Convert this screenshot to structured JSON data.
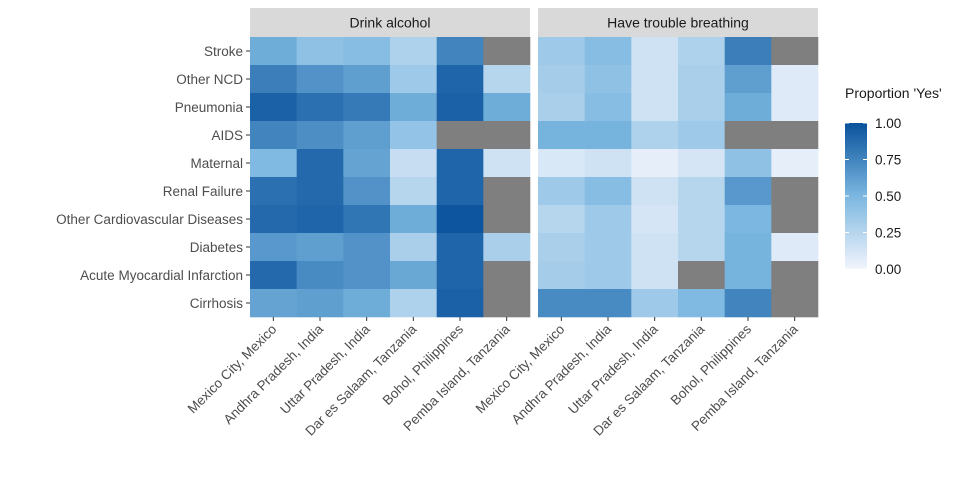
{
  "chart_data": {
    "type": "heatmap",
    "legend": {
      "title": "Proportion 'Yes'",
      "ticks": [
        "1.00",
        "0.75",
        "0.50",
        "0.25",
        "0.00"
      ],
      "tick_values": [
        1.0,
        0.75,
        0.5,
        0.25,
        0.0
      ],
      "range": [
        0,
        1
      ],
      "low_color": "#f1f4fc",
      "high_color": "#08519c"
    },
    "na_color": "#7f7f7f",
    "rows": [
      "Stroke",
      "Other NCD",
      "Pneumonia",
      "AIDS",
      "Maternal",
      "Renal Failure",
      "Other Cardiovascular Diseases",
      "Diabetes",
      "Acute Myocardial Infarction",
      "Cirrhosis"
    ],
    "columns": [
      "Mexico City, Mexico",
      "Andhra Pradesh, India",
      "Uttar Pradesh, India",
      "Dar es Salaam, Tanzania",
      "Bohol, Philippines",
      "Pemba Island, Tanzania"
    ],
    "panels": [
      {
        "title": "Drink alcohol",
        "values": [
          [
            0.55,
            0.42,
            0.45,
            0.28,
            0.75,
            null
          ],
          [
            0.78,
            0.68,
            0.62,
            0.35,
            0.9,
            0.25
          ],
          [
            0.92,
            0.85,
            0.8,
            0.55,
            0.92,
            0.55
          ],
          [
            0.75,
            0.7,
            0.62,
            0.4,
            null,
            null
          ],
          [
            0.48,
            0.88,
            0.6,
            0.18,
            0.9,
            0.15
          ],
          [
            0.85,
            0.88,
            0.68,
            0.25,
            0.9,
            null
          ],
          [
            0.88,
            0.9,
            0.82,
            0.55,
            0.98,
            null
          ],
          [
            0.65,
            0.62,
            0.68,
            0.3,
            0.9,
            0.3
          ],
          [
            0.88,
            0.72,
            0.68,
            0.58,
            0.9,
            null
          ],
          [
            0.6,
            0.62,
            0.55,
            0.28,
            0.92,
            null
          ]
        ]
      },
      {
        "title": "Have trouble breathing",
        "values": [
          [
            0.35,
            0.45,
            0.15,
            0.28,
            0.78,
            null
          ],
          [
            0.32,
            0.42,
            0.15,
            0.3,
            0.62,
            0.08
          ],
          [
            0.3,
            0.45,
            0.15,
            0.3,
            0.55,
            0.08
          ],
          [
            0.52,
            0.52,
            0.28,
            0.35,
            null,
            null
          ],
          [
            0.1,
            0.15,
            0.05,
            0.12,
            0.42,
            0.05
          ],
          [
            0.35,
            0.45,
            0.15,
            0.25,
            0.65,
            null
          ],
          [
            0.25,
            0.35,
            0.12,
            0.25,
            0.5,
            null
          ],
          [
            0.3,
            0.35,
            0.15,
            0.25,
            0.52,
            0.08
          ],
          [
            0.32,
            0.35,
            0.15,
            null,
            0.52,
            null
          ],
          [
            0.72,
            0.72,
            0.35,
            0.48,
            0.75,
            null
          ]
        ]
      }
    ]
  }
}
